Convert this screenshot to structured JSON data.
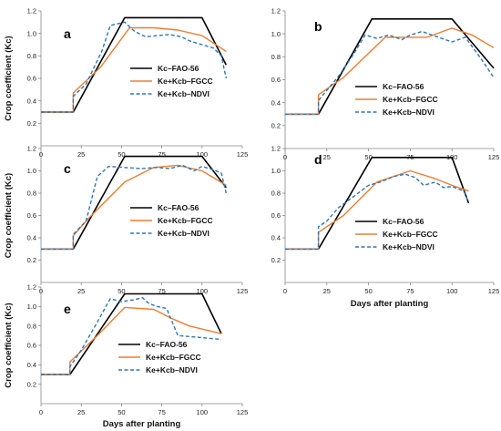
{
  "colors": {
    "fao": "#000000",
    "fgcc": "#ED7D31",
    "ndvi": "#2E75B6",
    "axis": "#888888"
  },
  "chart_data": [
    {
      "type": "line",
      "panel_label": "a",
      "xlabel": "",
      "ylabel": "Crop coefficient (Kc)",
      "xlim": [
        0,
        125
      ],
      "ylim": [
        0,
        1.2
      ],
      "xticks": [
        "0",
        "25",
        "50",
        "75",
        "100",
        "125"
      ],
      "yticks": [
        "0.2",
        "0.4",
        "0.6",
        "0.8",
        "1.0",
        "1.2"
      ],
      "legend_position": "right",
      "series": [
        {
          "name": "Kc–FAO-56",
          "style": "solid",
          "x": [
            0,
            20,
            52,
            100,
            115
          ],
          "y": [
            0.3,
            0.3,
            1.14,
            1.14,
            0.72
          ]
        },
        {
          "name": "Ke+Kcb–FGCC",
          "style": "solid",
          "x": [
            0,
            20,
            20,
            37,
            55,
            70,
            85,
            100,
            115
          ],
          "y": [
            0.3,
            0.3,
            0.47,
            0.7,
            1.05,
            1.05,
            1.03,
            0.98,
            0.84
          ]
        },
        {
          "name": "Ke+Kcb–NDVI",
          "style": "dashed",
          "x": [
            0,
            20,
            20,
            28,
            38,
            43,
            52,
            58,
            65,
            72,
            80,
            87,
            93,
            100,
            107,
            112,
            115
          ],
          "y": [
            0.3,
            0.3,
            0.44,
            0.55,
            0.85,
            1.07,
            1.1,
            1.02,
            0.97,
            0.98,
            0.99,
            0.97,
            0.93,
            0.9,
            0.87,
            0.8,
            0.6
          ]
        }
      ]
    },
    {
      "type": "line",
      "panel_label": "b",
      "xlabel": "",
      "ylabel": "",
      "xlim": [
        0,
        125
      ],
      "ylim": [
        0,
        1.2
      ],
      "xticks": [
        "0",
        "25",
        "50",
        "75",
        "100",
        "125"
      ],
      "yticks": [
        "0.2",
        "0.4",
        "0.6",
        "0.8",
        "1.0",
        "1.2"
      ],
      "legend_position": "right",
      "series": [
        {
          "name": "Kc–FAO-56",
          "style": "solid",
          "x": [
            0,
            20,
            52,
            100,
            125
          ],
          "y": [
            0.3,
            0.3,
            1.13,
            1.13,
            0.7
          ]
        },
        {
          "name": "Ke+Kcb–FGCC",
          "style": "solid",
          "x": [
            0,
            20,
            20,
            35,
            60,
            75,
            85,
            100,
            112,
            125
          ],
          "y": [
            0.3,
            0.3,
            0.47,
            0.62,
            0.97,
            0.97,
            0.97,
            1.05,
            0.99,
            0.88
          ]
        },
        {
          "name": "Ke+Kcb–NDVI",
          "style": "dashed",
          "x": [
            0,
            20,
            20,
            32,
            40,
            48,
            55,
            62,
            70,
            75,
            82,
            90,
            100,
            108,
            118,
            125
          ],
          "y": [
            0.3,
            0.3,
            0.42,
            0.63,
            0.8,
            0.99,
            0.96,
            0.99,
            0.95,
            0.99,
            1.02,
            0.98,
            0.93,
            0.97,
            0.77,
            0.62
          ]
        }
      ]
    },
    {
      "type": "line",
      "panel_label": "c",
      "xlabel": "",
      "ylabel": "Crop coefficient (Kc)",
      "xlim": [
        0,
        125
      ],
      "ylim": [
        0,
        1.2
      ],
      "xticks": [
        "0",
        "25",
        "50",
        "75",
        "100",
        "125"
      ],
      "yticks": [
        "0.2",
        "0.4",
        "0.6",
        "0.8",
        "1.0",
        "1.2"
      ],
      "legend_position": "right",
      "series": [
        {
          "name": "Kc–FAO-56",
          "style": "solid",
          "x": [
            0,
            20,
            52,
            100,
            115
          ],
          "y": [
            0.3,
            0.3,
            1.13,
            1.13,
            0.85
          ]
        },
        {
          "name": "Ke+Kcb–FGCC",
          "style": "solid",
          "x": [
            0,
            20,
            20,
            30,
            52,
            70,
            85,
            100,
            115
          ],
          "y": [
            0.3,
            0.3,
            0.42,
            0.58,
            0.9,
            1.03,
            1.05,
            1.0,
            0.87
          ]
        },
        {
          "name": "Ke+Kcb–NDVI",
          "style": "dashed",
          "x": [
            0,
            20,
            20,
            28,
            35,
            42,
            52,
            62,
            72,
            80,
            88,
            95,
            100,
            107,
            112,
            115
          ],
          "y": [
            0.3,
            0.3,
            0.43,
            0.55,
            0.95,
            1.04,
            1.03,
            1.02,
            1.03,
            1.02,
            1.05,
            1.0,
            1.04,
            1.01,
            0.98,
            0.8
          ]
        }
      ]
    },
    {
      "type": "line",
      "panel_label": "d",
      "xlabel": "Days after planting",
      "ylabel": "",
      "xlim": [
        0,
        125
      ],
      "ylim": [
        0,
        1.2
      ],
      "xticks": [
        "0",
        "25",
        "50",
        "75",
        "100",
        "125"
      ],
      "yticks": [
        "0.2",
        "0.4",
        "0.6",
        "0.8",
        "1.0",
        "1.2"
      ],
      "legend_position": "right",
      "series": [
        {
          "name": "Kc–FAO-56",
          "style": "solid",
          "x": [
            0,
            20,
            52,
            100,
            110
          ],
          "y": [
            0.3,
            0.3,
            1.12,
            1.12,
            0.71
          ]
        },
        {
          "name": "Ke+Kcb–FGCC",
          "style": "solid",
          "x": [
            0,
            20,
            20,
            35,
            55,
            75,
            90,
            100,
            110
          ],
          "y": [
            0.3,
            0.3,
            0.45,
            0.6,
            0.9,
            1.0,
            0.93,
            0.87,
            0.82
          ]
        },
        {
          "name": "Ke+Kcb–NDVI",
          "style": "dashed",
          "x": [
            0,
            20,
            20,
            25,
            32,
            42,
            50,
            57,
            65,
            72,
            78,
            83,
            90,
            95,
            100,
            107,
            110
          ],
          "y": [
            0.3,
            0.3,
            0.5,
            0.55,
            0.67,
            0.78,
            0.87,
            0.9,
            0.95,
            0.97,
            0.94,
            0.87,
            0.9,
            0.85,
            0.86,
            0.82,
            0.72
          ]
        }
      ]
    },
    {
      "type": "line",
      "panel_label": "e",
      "xlabel": "Days after planting",
      "ylabel": "Crop coefficient (Kc)",
      "xlim": [
        0,
        125
      ],
      "ylim": [
        0,
        1.2
      ],
      "xticks": [
        "0",
        "25",
        "50",
        "75",
        "100",
        "125"
      ],
      "yticks": [
        "0.2",
        "0.4",
        "0.6",
        "0.8",
        "1.0",
        "1.2"
      ],
      "legend_position": "right",
      "series": [
        {
          "name": "Kc–FAO-56",
          "style": "solid",
          "x": [
            0,
            18,
            52,
            100,
            112
          ],
          "y": [
            0.3,
            0.3,
            1.13,
            1.13,
            0.72
          ]
        },
        {
          "name": "Ke+Kcb–FGCC",
          "style": "solid",
          "x": [
            0,
            18,
            18,
            35,
            52,
            70,
            82,
            92,
            112
          ],
          "y": [
            0.3,
            0.3,
            0.43,
            0.7,
            0.99,
            0.97,
            0.87,
            0.8,
            0.72
          ]
        },
        {
          "name": "Ke+Kcb–NDVI",
          "style": "dashed",
          "x": [
            0,
            18,
            18,
            25,
            35,
            43,
            50,
            58,
            63,
            67,
            72,
            78,
            85,
            100,
            112
          ],
          "y": [
            0.3,
            0.3,
            0.38,
            0.55,
            0.84,
            1.08,
            1.05,
            1.07,
            1.09,
            1.03,
            1.0,
            0.98,
            0.7,
            0.68,
            0.66
          ]
        }
      ]
    }
  ]
}
